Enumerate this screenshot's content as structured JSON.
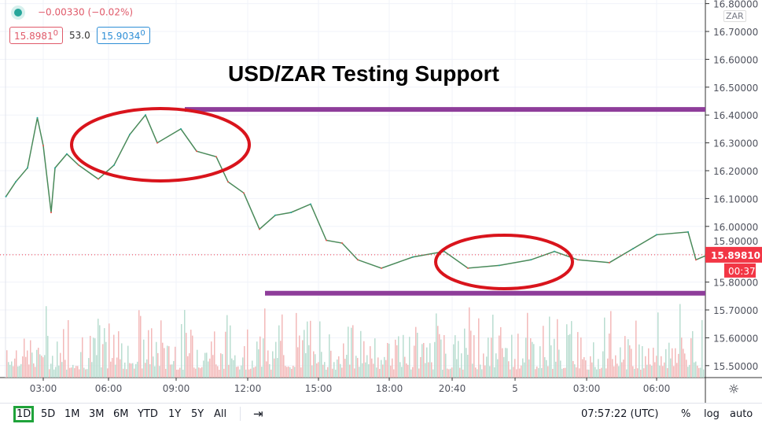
{
  "legend": {
    "change": "−0.00330 (−0.02%)",
    "bid": "15.8981",
    "bid_sup": "0",
    "spread": "53.0",
    "ask": "15.9034",
    "ask_sup": "0"
  },
  "currency_badge": "ZAR",
  "annotation_title": "USD/ZAR Testing Support",
  "colors": {
    "up": "#26a69a",
    "down": "#ef5350",
    "line": "#4a8a5a",
    "resistance": "#8e3d9a",
    "ellipse": "#d9141c",
    "price_tag": "#f23645",
    "volume_ma": "#f0a050"
  },
  "chart_data": {
    "type": "line",
    "title": "USD/ZAR Testing Support",
    "ylim": [
      15.45,
      16.8
    ],
    "y_ticks": [
      "16.80000",
      "16.70000",
      "16.60000",
      "16.50000",
      "16.40000",
      "16.30000",
      "16.20000",
      "16.10000",
      "16.00000",
      "15.90000",
      "15.80000",
      "15.70000",
      "15.60000",
      "15.50000"
    ],
    "x_ticks": [
      "03:00",
      "06:00",
      "09:00",
      "12:00",
      "15:00",
      "18:00",
      "20:40",
      "5",
      "03:00",
      "06:00"
    ],
    "grid": true,
    "x": [
      "01:25",
      "01:50",
      "02:20",
      "02:45",
      "03:00",
      "03:20",
      "03:30",
      "04:00",
      "04:30",
      "05:20",
      "06:00",
      "06:40",
      "07:20",
      "07:50",
      "08:50",
      "09:30",
      "10:20",
      "10:50",
      "11:30",
      "12:10",
      "12:50",
      "13:30",
      "14:20",
      "15:00",
      "15:40",
      "16:20",
      "17:20",
      "18:40",
      "20:00",
      "21:00",
      "22:20",
      "23:40",
      "00:40",
      "01:40",
      "03:00",
      "04:00",
      "05:00",
      "06:20",
      "06:40",
      "07:10"
    ],
    "series": [
      {
        "values": [
          16.107,
          16.16,
          16.21,
          16.39,
          16.29,
          16.05,
          16.21,
          16.26,
          16.22,
          16.17,
          16.22,
          16.33,
          16.4,
          16.3,
          16.35,
          16.27,
          16.25,
          16.16,
          16.12,
          15.99,
          16.04,
          16.05,
          16.08,
          15.95,
          15.94,
          15.88,
          15.85,
          15.89,
          15.91,
          15.85,
          15.86,
          15.88,
          15.91,
          15.88,
          15.87,
          15.92,
          15.97,
          15.98,
          15.88,
          15.898
        ]
      }
    ],
    "last_price": "15.89810",
    "countdown": "00:37",
    "resistance": 16.42,
    "support": 15.76
  },
  "toolbar": {
    "ranges": [
      "1D",
      "5D",
      "1M",
      "3M",
      "6M",
      "YTD",
      "1Y",
      "5Y",
      "All"
    ],
    "selected": "1D",
    "clock": "07:57:22 (UTC)",
    "percent": "%",
    "log": "log",
    "auto": "auto"
  }
}
